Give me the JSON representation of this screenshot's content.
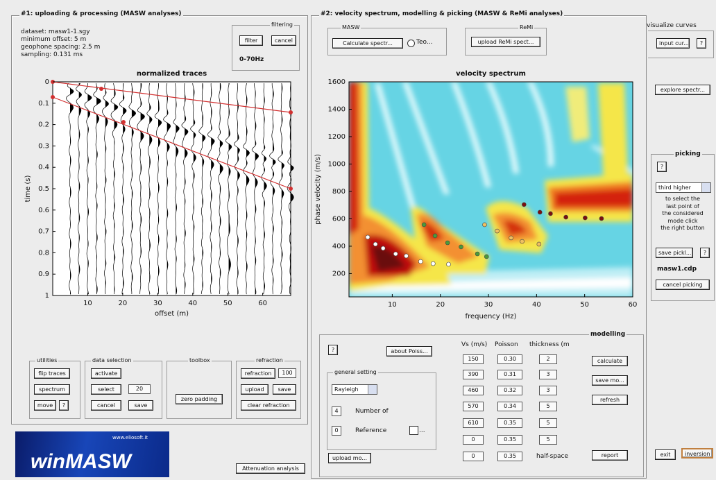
{
  "panel1": {
    "title": "#1: uploading & processing (MASW analyses)",
    "info": [
      "dataset: masw1-1.sgy",
      "minimum offset: 5 m",
      "geophone spacing: 2.5 m",
      "sampling: 0.131 ms"
    ],
    "filtering": {
      "label": "filtering",
      "filter": "filter",
      "cancel": "cancel",
      "band": "0-70Hz"
    },
    "traces": {
      "title": "normalized traces",
      "xlabel": "offset (m)",
      "ylabel": "time (s)",
      "xlim": [
        0,
        68
      ],
      "ylim": [
        0,
        1
      ],
      "xticks": [
        10,
        20,
        30,
        40,
        50,
        60
      ],
      "yticks": [
        0,
        0.1,
        0.2,
        0.3,
        0.4,
        0.5,
        0.6,
        0.7,
        0.8,
        0.9,
        1
      ]
    },
    "utilities": {
      "label": "utilities",
      "flip": "flip traces",
      "spectrum": "spectrum",
      "move": "move",
      "help": "?"
    },
    "data_selection": {
      "label": "data selection",
      "activate": "activate",
      "select": "select",
      "count": "20",
      "cancel": "cancel",
      "save": "save"
    },
    "toolbox": {
      "label": "toolbox",
      "zero_padding": "zero padding"
    },
    "refraction": {
      "label": "refraction",
      "refraction": "refraction",
      "value": "100",
      "upload": "upload",
      "save": "save",
      "clear": "clear refraction"
    }
  },
  "logo": {
    "url": "www.eliosoft.it",
    "name": "winMASW"
  },
  "attenuation": "Attenuation analysis",
  "panel2": {
    "title": "#2: velocity spectrum, modelling & picking (MASW & ReMi analyses)",
    "masw": {
      "label": "MASW",
      "calculate": "Calculate spectr...",
      "option": "Teo..."
    },
    "remi": {
      "label": "ReMi",
      "upload": "upload ReMi spect..."
    },
    "spectrum": {
      "title": "velocity spectrum",
      "xlabel": "frequency (Hz)",
      "ylabel": "phase velocity (m/s)",
      "xlim": [
        1,
        60
      ],
      "ylim": [
        30,
        1600
      ],
      "xticks": [
        10,
        20,
        30,
        40,
        50,
        60
      ],
      "yticks": [
        200,
        400,
        600,
        800,
        1000,
        1200,
        1400,
        1600
      ],
      "picks": [
        {
          "color": "#ffffff",
          "f": [
            4.9,
            6.5,
            8.1,
            10.7,
            12.9,
            15.9,
            18.5,
            21.7
          ],
          "v": [
            466,
            415,
            385,
            344,
            329,
            288,
            273,
            268
          ]
        },
        {
          "color": "#4a9a3a",
          "f": [
            16.6,
            18.9,
            21.5,
            24.3,
            27.7,
            29.6
          ],
          "v": [
            557,
            476,
            425,
            395,
            344,
            324
          ]
        },
        {
          "color": "#f0c060",
          "f": [
            29.2,
            31.8,
            34.7,
            37,
            40.5
          ],
          "v": [
            557,
            511,
            461,
            435,
            415
          ]
        },
        {
          "color": "#7a1010",
          "f": [
            37.4,
            40.7,
            42.9,
            46.1,
            50.1,
            53.5
          ],
          "v": [
            704,
            648,
            638,
            612,
            607,
            602
          ]
        }
      ]
    },
    "modelling": {
      "label": "modelling",
      "help": "?",
      "about": "about Poiss...",
      "headers": [
        "Vs (m/s)",
        "Poisson",
        "thickness (m"
      ],
      "rows": [
        [
          "150",
          "0.30",
          "2"
        ],
        [
          "390",
          "0.31",
          "3"
        ],
        [
          "460",
          "0.32",
          "3"
        ],
        [
          "570",
          "0.34",
          "5"
        ],
        [
          "610",
          "0.35",
          "5"
        ],
        [
          "0",
          "0.35",
          "5"
        ],
        [
          "0",
          "0.35",
          "half-space"
        ]
      ],
      "general": {
        "label": "general setting",
        "wave": "Rayleigh",
        "modes": "4",
        "modes_label": "Number of",
        "reference": "0",
        "reference_label": "Reference",
        "more": "..."
      },
      "calculate": "calculate",
      "save": "save mo...",
      "refresh": "refresh",
      "report": "report",
      "upload": "upload mo..."
    }
  },
  "panel3": {
    "visualize_label": "visualize curves",
    "input": "input cur...",
    "help": "?",
    "explore": "explore spectr...",
    "picking": {
      "label": "picking",
      "help": "?",
      "mode": "third higher",
      "hint": [
        "to select the",
        "last point of",
        "the considered",
        "mode click",
        "the right button"
      ],
      "save": "save pickl...",
      "save_help": "?",
      "file": "masw1.cdp",
      "cancel": "cancel picking"
    },
    "exit": "exit",
    "inversion": "inversion"
  }
}
